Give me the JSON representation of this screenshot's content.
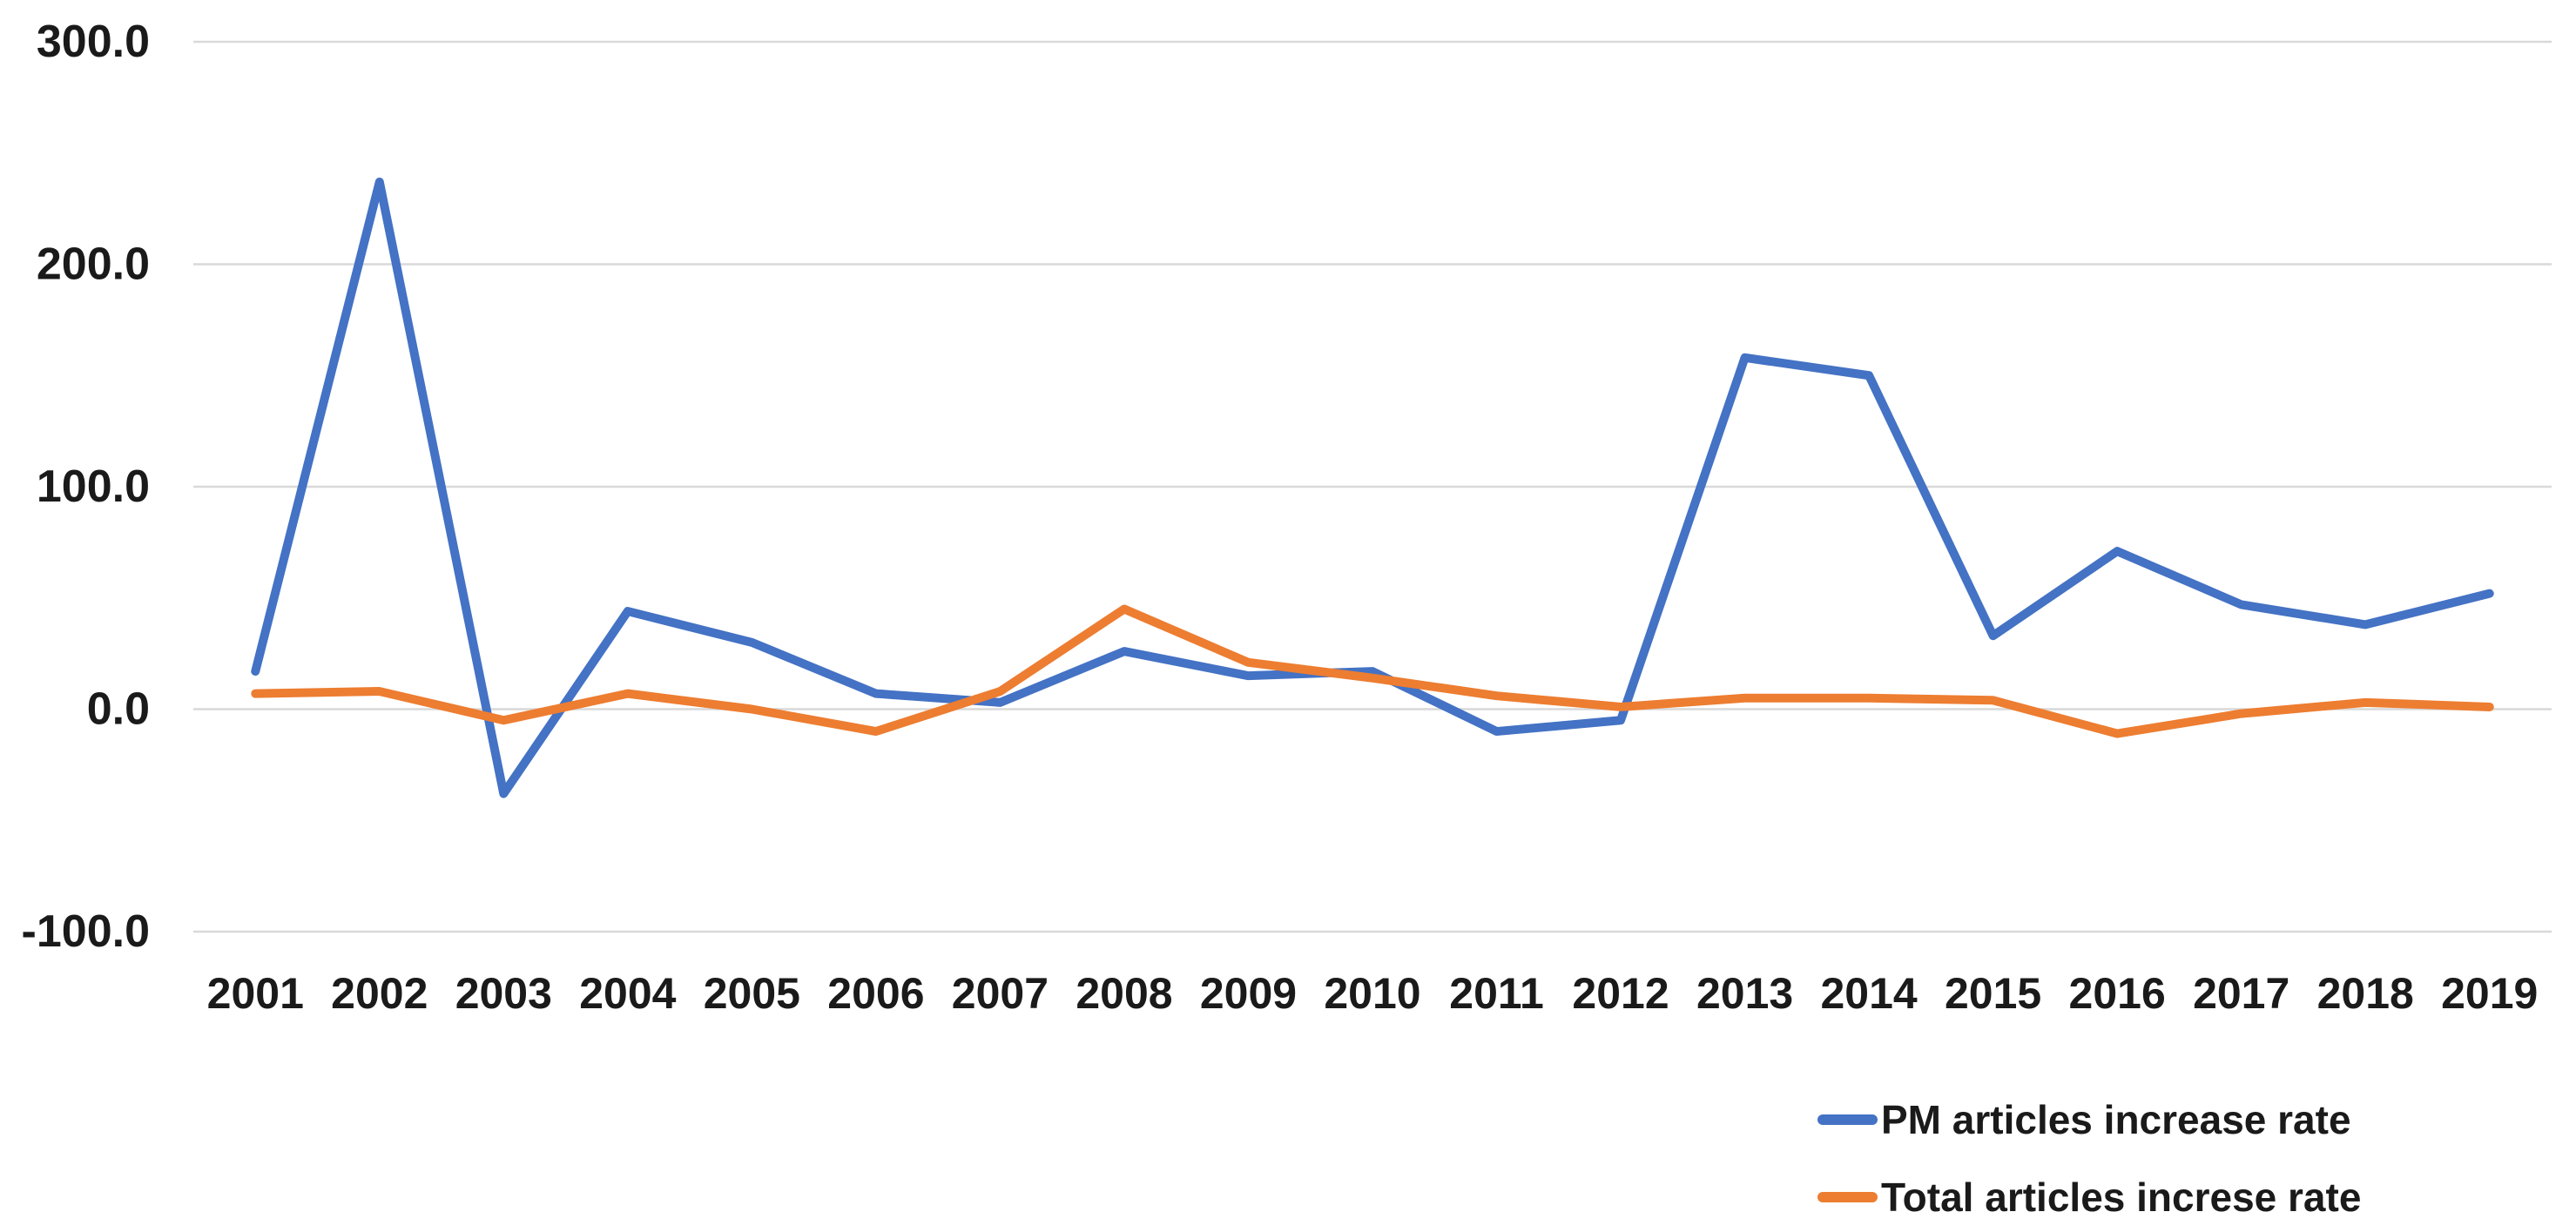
{
  "chart_data": {
    "type": "line",
    "title": "",
    "categories": [
      "2001",
      "2002",
      "2003",
      "2004",
      "2005",
      "2006",
      "2007",
      "2008",
      "2009",
      "2010",
      "2011",
      "2012",
      "2013",
      "2014",
      "2015",
      "2016",
      "2017",
      "2018",
      "2019"
    ],
    "series": [
      {
        "name": "PM articles increase rate",
        "color": "#4472C4",
        "values": [
          17,
          237,
          -38,
          44,
          30,
          7,
          3,
          26,
          15,
          17,
          -10,
          -5,
          158,
          150,
          33,
          71,
          47,
          38,
          52
        ]
      },
      {
        "name": "Total articles increse rate",
        "color": "#ED7D31",
        "values": [
          7,
          8,
          -5,
          7,
          0,
          -10,
          8,
          45,
          21,
          14,
          6,
          1,
          5,
          5,
          4,
          -11,
          -2,
          3,
          1
        ]
      }
    ],
    "y_axis": {
      "min": -100,
      "max": 300,
      "ticks": [
        {
          "value": 300,
          "label": "300.0"
        },
        {
          "value": 200,
          "label": "200.0"
        },
        {
          "value": 100,
          "label": "100.0"
        },
        {
          "value": 0,
          "label": "0.0"
        },
        {
          "value": -100,
          "label": "-100.0"
        }
      ]
    },
    "grid": true,
    "legend_position": "bottom-right",
    "colors": {
      "gridline": "#D9D9D9",
      "label_text": "#1a1a1a",
      "background": "#ffffff"
    }
  }
}
